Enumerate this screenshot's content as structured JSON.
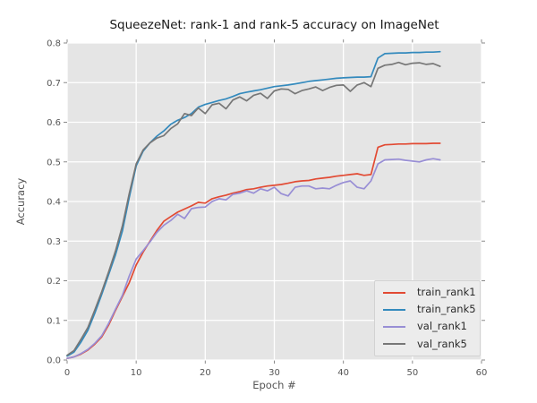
{
  "chart_data": {
    "type": "line",
    "title": "SqueezeNet: rank-1 and rank-5 accuracy on ImageNet",
    "xlabel": "Epoch #",
    "ylabel": "Accuracy",
    "xlim": [
      0,
      60
    ],
    "ylim": [
      0.0,
      0.8
    ],
    "x_ticks": [
      0,
      10,
      20,
      30,
      40,
      50,
      60
    ],
    "y_ticks": [
      "0.0",
      "0.1",
      "0.2",
      "0.3",
      "0.4",
      "0.5",
      "0.6",
      "0.7",
      "0.8"
    ],
    "grid": true,
    "grid_color": "#ffffff",
    "background": "#e5e5e5",
    "legend_position": "lower right",
    "x": [
      0,
      1,
      2,
      3,
      4,
      5,
      6,
      7,
      8,
      9,
      10,
      11,
      12,
      13,
      14,
      15,
      16,
      17,
      18,
      19,
      20,
      21,
      22,
      23,
      24,
      25,
      26,
      27,
      28,
      29,
      30,
      31,
      32,
      33,
      34,
      35,
      36,
      37,
      38,
      39,
      40,
      41,
      42,
      43,
      44,
      45,
      46,
      47,
      48,
      49,
      50,
      51,
      52,
      53,
      54
    ],
    "series": [
      {
        "name": "train_rank1",
        "color": "#e24a33",
        "values": [
          0.004,
          0.008,
          0.015,
          0.025,
          0.04,
          0.058,
          0.088,
          0.125,
          0.16,
          0.195,
          0.24,
          0.272,
          0.3,
          0.327,
          0.35,
          0.362,
          0.373,
          0.381,
          0.389,
          0.398,
          0.396,
          0.407,
          0.412,
          0.416,
          0.421,
          0.425,
          0.43,
          0.432,
          0.436,
          0.439,
          0.441,
          0.443,
          0.446,
          0.45,
          0.452,
          0.453,
          0.457,
          0.459,
          0.461,
          0.464,
          0.466,
          0.468,
          0.47,
          0.466,
          0.468,
          0.537,
          0.543,
          0.544,
          0.545,
          0.545,
          0.546,
          0.546,
          0.546,
          0.547,
          0.547
        ]
      },
      {
        "name": "train_rank5",
        "color": "#348abd",
        "values": [
          0.01,
          0.02,
          0.045,
          0.075,
          0.118,
          0.165,
          0.215,
          0.265,
          0.325,
          0.41,
          0.49,
          0.527,
          0.548,
          0.565,
          0.578,
          0.595,
          0.605,
          0.612,
          0.622,
          0.638,
          0.645,
          0.65,
          0.655,
          0.659,
          0.665,
          0.672,
          0.676,
          0.679,
          0.682,
          0.686,
          0.69,
          0.692,
          0.694,
          0.697,
          0.7,
          0.703,
          0.705,
          0.707,
          0.709,
          0.711,
          0.712,
          0.713,
          0.714,
          0.714,
          0.715,
          0.762,
          0.773,
          0.774,
          0.775,
          0.775,
          0.776,
          0.776,
          0.777,
          0.777,
          0.778
        ]
      },
      {
        "name": "val_rank1",
        "color": "#988ed5",
        "values": [
          0.004,
          0.008,
          0.016,
          0.027,
          0.042,
          0.061,
          0.092,
          0.128,
          0.163,
          0.212,
          0.255,
          0.276,
          0.298,
          0.322,
          0.34,
          0.352,
          0.368,
          0.357,
          0.382,
          0.385,
          0.386,
          0.4,
          0.407,
          0.404,
          0.418,
          0.421,
          0.427,
          0.421,
          0.432,
          0.427,
          0.436,
          0.42,
          0.414,
          0.436,
          0.439,
          0.439,
          0.432,
          0.434,
          0.432,
          0.441,
          0.448,
          0.452,
          0.436,
          0.432,
          0.452,
          0.495,
          0.505,
          0.506,
          0.507,
          0.504,
          0.502,
          0.5,
          0.505,
          0.508,
          0.505
        ]
      },
      {
        "name": "val_rank5",
        "color": "#777777",
        "values": [
          0.012,
          0.024,
          0.052,
          0.082,
          0.126,
          0.172,
          0.222,
          0.275,
          0.338,
          0.42,
          0.495,
          0.53,
          0.548,
          0.56,
          0.566,
          0.584,
          0.596,
          0.622,
          0.617,
          0.636,
          0.622,
          0.644,
          0.648,
          0.634,
          0.656,
          0.664,
          0.654,
          0.668,
          0.673,
          0.66,
          0.679,
          0.684,
          0.683,
          0.672,
          0.68,
          0.684,
          0.689,
          0.68,
          0.688,
          0.693,
          0.694,
          0.678,
          0.694,
          0.7,
          0.69,
          0.736,
          0.744,
          0.746,
          0.751,
          0.745,
          0.749,
          0.75,
          0.746,
          0.748,
          0.741
        ]
      }
    ]
  }
}
